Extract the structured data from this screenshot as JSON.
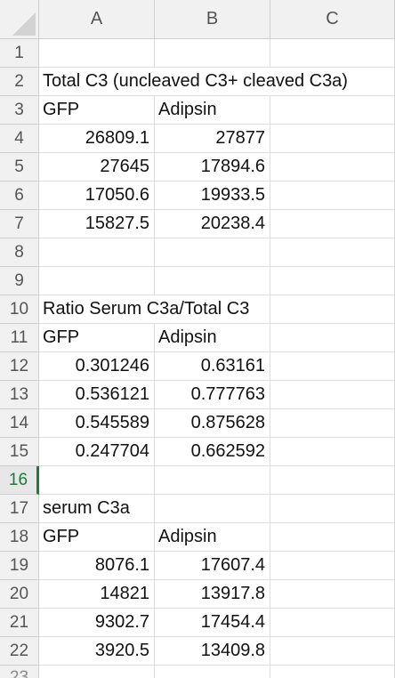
{
  "columns": [
    "A",
    "B",
    "C"
  ],
  "rows": [
    {
      "n": "1",
      "a": "",
      "b": "",
      "c": ""
    },
    {
      "n": "2",
      "a": "Total C3 (uncleaved C3+ cleaved C3a)",
      "b": "",
      "c": ""
    },
    {
      "n": "3",
      "a": "GFP",
      "b": "Adipsin",
      "c": ""
    },
    {
      "n": "4",
      "a": "26809.1",
      "b": "27877",
      "c": ""
    },
    {
      "n": "5",
      "a": "27645",
      "b": "17894.6",
      "c": ""
    },
    {
      "n": "6",
      "a": "17050.6",
      "b": "19933.5",
      "c": ""
    },
    {
      "n": "7",
      "a": "15827.5",
      "b": "20238.4",
      "c": ""
    },
    {
      "n": "8",
      "a": "",
      "b": "",
      "c": ""
    },
    {
      "n": "9",
      "a": "",
      "b": "",
      "c": ""
    },
    {
      "n": "10",
      "a": "Ratio Serum C3a/Total C3",
      "b": "",
      "c": ""
    },
    {
      "n": "11",
      "a": "GFP",
      "b": "Adipsin",
      "c": ""
    },
    {
      "n": "12",
      "a": "0.301246",
      "b": "0.63161",
      "c": ""
    },
    {
      "n": "13",
      "a": "0.536121",
      "b": "0.777763",
      "c": ""
    },
    {
      "n": "14",
      "a": "0.545589",
      "b": "0.875628",
      "c": ""
    },
    {
      "n": "15",
      "a": "0.247704",
      "b": "0.662592",
      "c": ""
    },
    {
      "n": "16",
      "a": "",
      "b": "",
      "c": ""
    },
    {
      "n": "17",
      "a": "serum C3a",
      "b": "",
      "c": ""
    },
    {
      "n": "18",
      "a": "GFP",
      "b": "Adipsin",
      "c": ""
    },
    {
      "n": "19",
      "a": "8076.1",
      "b": "17607.4",
      "c": ""
    },
    {
      "n": "20",
      "a": "14821",
      "b": "13917.8",
      "c": ""
    },
    {
      "n": "21",
      "a": "9302.7",
      "b": "17454.4",
      "c": ""
    },
    {
      "n": "22",
      "a": "3920.5",
      "b": "13409.8",
      "c": ""
    }
  ],
  "partial_row": "23",
  "active_row": "16",
  "colors": {
    "accent": "#1f7a3a",
    "header_bg": "#f1f1f1",
    "grid": "#dcdcdc"
  }
}
